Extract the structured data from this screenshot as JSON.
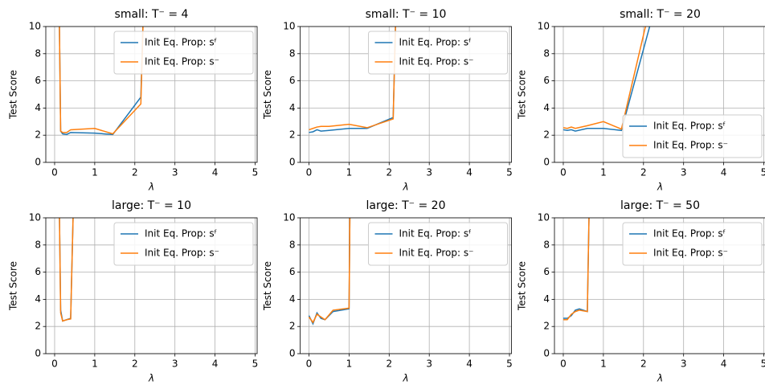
{
  "chart_data": [
    {
      "type": "line",
      "title": "small: T⁻ = 4",
      "x_label": "λ",
      "y_label": "Test Score",
      "xlim": [
        -0.22,
        5.05
      ],
      "ylim": [
        0,
        10
      ],
      "xticks": [
        0,
        1,
        2,
        3,
        4,
        5
      ],
      "yticks": [
        0,
        2,
        4,
        6,
        8,
        10
      ],
      "grid": true,
      "legend": "upper right",
      "x": [
        0.1,
        0.15,
        0.2,
        0.3,
        0.4,
        1.0,
        1.45,
        2.15,
        2.25
      ],
      "series": [
        {
          "name": "Init Eq. Prop: sᶠ",
          "color": "#1f77b4",
          "values": [
            15,
            2.3,
            2.1,
            2.05,
            2.2,
            2.15,
            2.05,
            4.8,
            15
          ]
        },
        {
          "name": "Init Eq. Prop: s⁻",
          "color": "#ff7f0e",
          "values": [
            15,
            2.3,
            2.2,
            2.2,
            2.4,
            2.5,
            2.1,
            4.3,
            15
          ]
        }
      ]
    },
    {
      "type": "line",
      "title": "small: T⁻ = 10",
      "x_label": "λ",
      "y_label": "Test Score",
      "xlim": [
        -0.22,
        5.05
      ],
      "ylim": [
        0,
        10
      ],
      "xticks": [
        0,
        1,
        2,
        3,
        4,
        5
      ],
      "yticks": [
        0,
        2,
        4,
        6,
        8,
        10
      ],
      "grid": true,
      "legend": "upper right",
      "x": [
        0,
        0.1,
        0.2,
        0.3,
        0.5,
        1.0,
        1.45,
        2.1,
        2.2
      ],
      "series": [
        {
          "name": "Init Eq. Prop: sᶠ",
          "color": "#1f77b4",
          "values": [
            2.2,
            2.25,
            2.4,
            2.3,
            2.35,
            2.5,
            2.5,
            3.3,
            15
          ]
        },
        {
          "name": "Init Eq. Prop: s⁻",
          "color": "#ff7f0e",
          "values": [
            2.4,
            2.5,
            2.6,
            2.65,
            2.65,
            2.8,
            2.55,
            3.2,
            15
          ]
        }
      ]
    },
    {
      "type": "line",
      "title": "small: T⁻ = 20",
      "x_label": "λ",
      "y_label": "Test Score",
      "xlim": [
        -0.22,
        5.05
      ],
      "ylim": [
        0,
        10
      ],
      "xticks": [
        0,
        1,
        2,
        3,
        4,
        5
      ],
      "yticks": [
        0,
        2,
        4,
        6,
        8,
        10
      ],
      "grid": true,
      "legend": "lower right",
      "x": [
        0,
        0.1,
        0.2,
        0.3,
        0.6,
        1.0,
        1.45,
        2.2
      ],
      "series": [
        {
          "name": "Init Eq. Prop: sᶠ",
          "color": "#1f77b4",
          "values": [
            2.4,
            2.35,
            2.4,
            2.3,
            2.5,
            2.5,
            2.35,
            10.5
          ]
        },
        {
          "name": "Init Eq. Prop: s⁻",
          "color": "#ff7f0e",
          "values": [
            2.55,
            2.5,
            2.6,
            2.5,
            2.7,
            3.0,
            2.45,
            11.9
          ]
        }
      ]
    },
    {
      "type": "line",
      "title": "large: T⁻ = 10",
      "x_label": "λ",
      "y_label": "Test Score",
      "xlim": [
        -0.22,
        5.05
      ],
      "ylim": [
        0,
        10
      ],
      "xticks": [
        0,
        1,
        2,
        3,
        4,
        5
      ],
      "yticks": [
        0,
        2,
        4,
        6,
        8,
        10
      ],
      "grid": true,
      "legend": "upper right",
      "x": [
        0.1,
        0.15,
        0.2,
        0.3,
        0.4,
        0.5
      ],
      "series": [
        {
          "name": "Init Eq. Prop: sᶠ",
          "color": "#1f77b4",
          "values": [
            15,
            3.2,
            2.4,
            2.5,
            2.6,
            15
          ]
        },
        {
          "name": "Init Eq. Prop: s⁻",
          "color": "#ff7f0e",
          "values": [
            15,
            3.0,
            2.4,
            2.5,
            2.55,
            15
          ]
        }
      ]
    },
    {
      "type": "line",
      "title": "large: T⁻ = 20",
      "x_label": "λ",
      "y_label": "Test Score",
      "xlim": [
        -0.22,
        5.05
      ],
      "ylim": [
        0,
        10
      ],
      "xticks": [
        0,
        1,
        2,
        3,
        4,
        5
      ],
      "yticks": [
        0,
        2,
        4,
        6,
        8,
        10
      ],
      "grid": true,
      "legend": "upper right",
      "x": [
        0,
        0.1,
        0.2,
        0.3,
        0.4,
        0.6,
        1.0,
        1.05
      ],
      "series": [
        {
          "name": "Init Eq. Prop: sᶠ",
          "color": "#1f77b4",
          "values": [
            2.8,
            2.2,
            3.0,
            2.6,
            2.5,
            3.1,
            3.3,
            20
          ]
        },
        {
          "name": "Init Eq. Prop: s⁻",
          "color": "#ff7f0e",
          "values": [
            2.7,
            2.3,
            2.9,
            2.7,
            2.5,
            3.2,
            3.35,
            20
          ]
        }
      ]
    },
    {
      "type": "line",
      "title": "large: T⁻ = 50",
      "x_label": "λ",
      "y_label": "Test Score",
      "xlim": [
        -0.22,
        5.05
      ],
      "ylim": [
        0,
        10
      ],
      "xticks": [
        0,
        1,
        2,
        3,
        4,
        5
      ],
      "yticks": [
        0,
        2,
        4,
        6,
        8,
        10
      ],
      "grid": true,
      "legend": "upper right",
      "x": [
        0,
        0.1,
        0.2,
        0.3,
        0.4,
        0.6,
        0.7
      ],
      "series": [
        {
          "name": "Init Eq. Prop: sᶠ",
          "color": "#1f77b4",
          "values": [
            2.6,
            2.6,
            2.8,
            3.2,
            3.3,
            3.1,
            20
          ]
        },
        {
          "name": "Init Eq. Prop: s⁻",
          "color": "#ff7f0e",
          "values": [
            2.5,
            2.5,
            2.9,
            3.1,
            3.2,
            3.1,
            20
          ]
        }
      ]
    }
  ]
}
